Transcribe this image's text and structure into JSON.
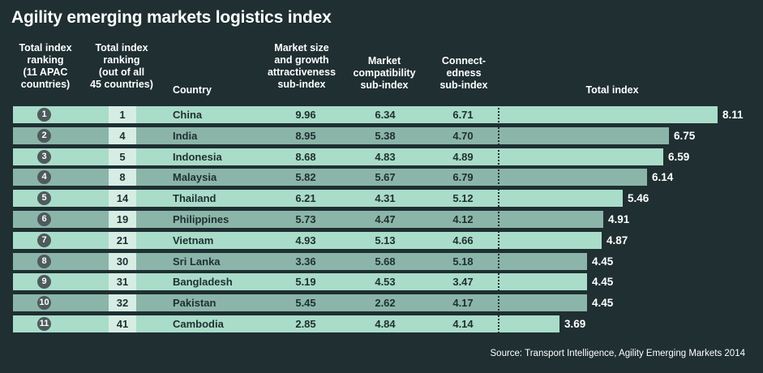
{
  "title": "Agility emerging markets logistics index",
  "headers": {
    "apac_rank": "Total index\nranking\n(11 APAC\ncountries)",
    "global_rank": "Total index\nranking\n(out of all\n45 countries)",
    "country": "Country",
    "market_size": "Market size\nand growth\nattractiveness\nsub-index",
    "market_compat": "Market\ncompatibility\nsub-index",
    "connectedness": "Connect-\nedness\nsub-index",
    "total": "Total index"
  },
  "source": "Source: Transport Intelligence, Agility Emerging Markets 2014",
  "colors": {
    "background": "#1f2f32",
    "light_row": "#a9dcc9",
    "dark_row": "#8bb5a8",
    "rank_box": "#d6ede4",
    "circle": "#4d5b5c"
  },
  "chart_data": {
    "type": "table",
    "title": "Agility emerging markets logistics index",
    "columns": [
      "Total index ranking (11 APAC countries)",
      "Total index ranking (out of all 45 countries)",
      "Country",
      "Market size and growth attractiveness sub-index",
      "Market compatibility sub-index",
      "Connectedness sub-index",
      "Total index"
    ],
    "rows": [
      {
        "apac_rank": "1",
        "global_rank": "1",
        "country": "China",
        "market_size": "9.96",
        "market_compat": "6.34",
        "connectedness": "6.71",
        "total": "8.11",
        "total_value": 8.11
      },
      {
        "apac_rank": "2",
        "global_rank": "4",
        "country": "India",
        "market_size": "8.95",
        "market_compat": "5.38",
        "connectedness": "4.70",
        "total": "6.75",
        "total_value": 6.75
      },
      {
        "apac_rank": "3",
        "global_rank": "5",
        "country": "Indonesia",
        "market_size": "8.68",
        "market_compat": "4.83",
        "connectedness": "4.89",
        "total": "6.59",
        "total_value": 6.59
      },
      {
        "apac_rank": "4",
        "global_rank": "8",
        "country": "Malaysia",
        "market_size": "5.82",
        "market_compat": "5.67",
        "connectedness": "6.79",
        "total": "6.14",
        "total_value": 6.14
      },
      {
        "apac_rank": "5",
        "global_rank": "14",
        "country": "Thailand",
        "market_size": "6.21",
        "market_compat": "4.31",
        "connectedness": "5.12",
        "total": "5.46",
        "total_value": 5.46
      },
      {
        "apac_rank": "6",
        "global_rank": "19",
        "country": "Philippines",
        "market_size": "5.73",
        "market_compat": "4.47",
        "connectedness": "4.12",
        "total": "4.91",
        "total_value": 4.91
      },
      {
        "apac_rank": "7",
        "global_rank": "21",
        "country": "Vietnam",
        "market_size": "4.93",
        "market_compat": "5.13",
        "connectedness": "4.66",
        "total": "4.87",
        "total_value": 4.87
      },
      {
        "apac_rank": "8",
        "global_rank": "30",
        "country": "Sri Lanka",
        "market_size": "3.36",
        "market_compat": "5.68",
        "connectedness": "5.18",
        "total": "4.45",
        "total_value": 4.45
      },
      {
        "apac_rank": "9",
        "global_rank": "31",
        "country": "Bangladesh",
        "market_size": "5.19",
        "market_compat": "4.53",
        "connectedness": "3.47",
        "total": "4.45",
        "total_value": 4.45
      },
      {
        "apac_rank": "10",
        "global_rank": "32",
        "country": "Pakistan",
        "market_size": "5.45",
        "market_compat": "2.62",
        "connectedness": "4.17",
        "total": "4.45",
        "total_value": 4.45
      },
      {
        "apac_rank": "11",
        "global_rank": "41",
        "country": "Cambodia",
        "market_size": "2.85",
        "market_compat": "4.84",
        "connectedness": "4.14",
        "total": "3.69",
        "total_value": 3.69
      }
    ]
  }
}
